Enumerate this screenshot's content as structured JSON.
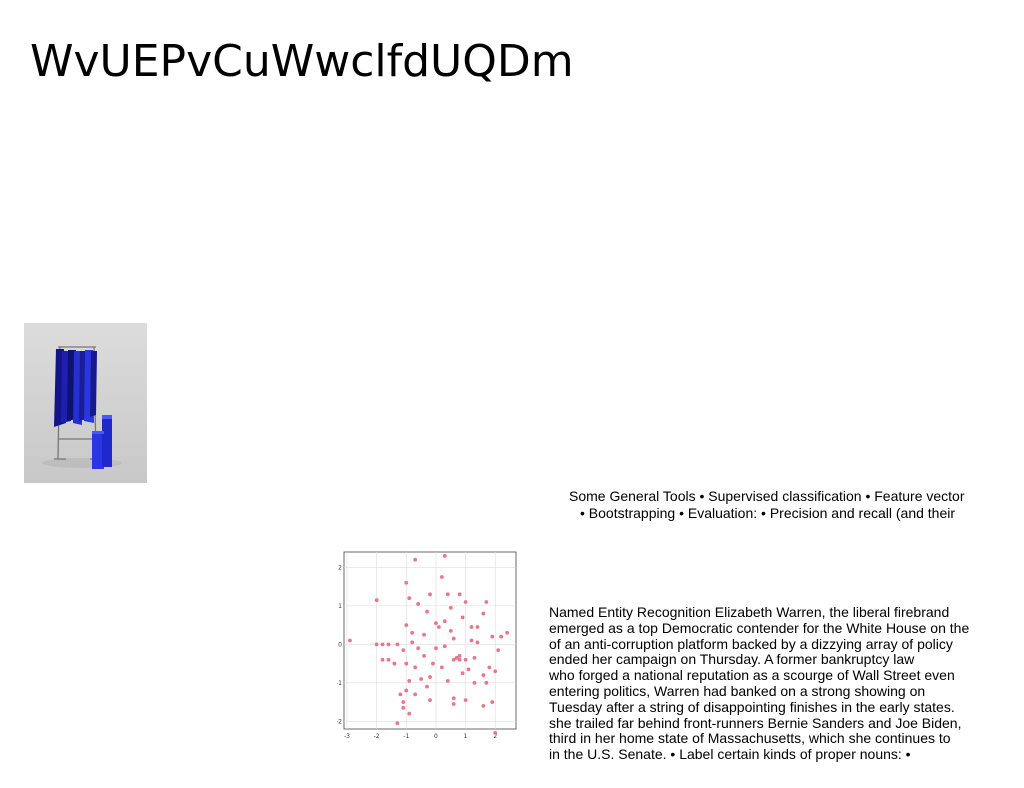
{
  "slide": {
    "title": "WvUEPvCuWwclfdUQDm"
  },
  "photo": {
    "icon": "clothing-rack-photo",
    "rack_color": "#1f2bd6"
  },
  "tools_text": {
    "lines": [
      "Some General Tools • Supervised classification • Feature vector",
      "• Bootstrapping • Evaluation: • Precision and recall (and their"
    ]
  },
  "ner_text": {
    "lines": [
      "Named Entity Recognition Elizabeth Warren, the liberal firebrand",
      "emerged as a top Democratic contender for the White House on the",
      "of an anti-corruption platform backed by a dizzying array of policy",
      "ended her campaign on Thursday. A former bankruptcy law",
      "who forged a national reputation as a scourge of Wall Street even",
      "entering politics, Warren had banked on a strong showing on",
      "Tuesday after a string of disappointing finishes in the early states.",
      "she trailed far behind front-runners Bernie Sanders and Joe Biden,",
      "third in her home state of Massachusetts, which she continues to",
      "in the U.S. Senate. • Label certain kinds of proper nouns: •"
    ]
  },
  "chart_data": {
    "type": "scatter",
    "title": "",
    "xlabel": "",
    "ylabel": "",
    "xlim": [
      -3.1,
      2.7
    ],
    "ylim": [
      -2.2,
      2.4
    ],
    "xticks": [
      "-3",
      "-2",
      "-1",
      "0",
      "1",
      "2"
    ],
    "yticks": [
      "2",
      "1",
      "0",
      "-1",
      "-2"
    ],
    "grid": true,
    "point_color": "#e8667f",
    "x": [
      -0.7,
      0.3,
      -1.0,
      -2.0,
      -0.9,
      -0.6,
      -0.2,
      0.2,
      0.4,
      0.8,
      1.0,
      1.7,
      1.6,
      -0.3,
      0.0,
      0.5,
      0.9,
      1.4,
      -1.0,
      -0.8,
      -0.4,
      0.1,
      0.6,
      1.2,
      1.9,
      -2.9,
      -2.0,
      -1.8,
      -1.6,
      -1.3,
      -1.1,
      -0.6,
      0.0,
      0.3,
      0.7,
      1.0,
      1.3,
      1.8,
      2.2,
      2.4,
      -1.6,
      -1.4,
      -1.0,
      -0.7,
      -0.4,
      -0.1,
      0.2,
      0.6,
      0.8,
      1.1,
      1.6,
      2.0,
      -0.9,
      -0.5,
      -0.2,
      0.4,
      0.9,
      1.3,
      1.7,
      -1.0,
      -0.7,
      -0.3,
      0.6,
      1.0,
      1.6,
      -1.1,
      -0.9,
      -0.2,
      0.6,
      1.9,
      -1.1,
      -1.3,
      2.0,
      -1.2,
      2.1,
      0.3,
      -0.8,
      0.5,
      1.4,
      -1.8,
      0.8,
      1.2
    ],
    "y": [
      2.2,
      2.3,
      1.6,
      1.15,
      1.2,
      1.05,
      1.3,
      1.75,
      1.3,
      1.3,
      1.1,
      1.1,
      0.8,
      0.85,
      0.55,
      0.95,
      0.7,
      0.45,
      0.5,
      0.3,
      0.25,
      0.45,
      0.15,
      0.1,
      0.2,
      0.1,
      0.0,
      0.0,
      0.0,
      0.0,
      -0.15,
      -0.1,
      -0.1,
      -0.05,
      -0.35,
      -0.4,
      -0.35,
      -0.6,
      0.2,
      0.3,
      -0.4,
      -0.5,
      -0.5,
      -0.6,
      -0.3,
      -0.5,
      -0.6,
      -0.4,
      -0.4,
      -0.65,
      -0.8,
      -0.7,
      -0.95,
      -0.9,
      -0.85,
      -0.95,
      -0.75,
      -1.0,
      -1.0,
      -1.2,
      -1.3,
      -1.1,
      -1.4,
      -1.45,
      -1.6,
      -1.5,
      -1.8,
      -1.45,
      -1.55,
      -1.5,
      -1.65,
      -2.05,
      -2.3,
      -1.3,
      -0.15,
      0.6,
      0.05,
      0.35,
      0.05,
      -0.4,
      -0.3,
      0.45
    ]
  }
}
